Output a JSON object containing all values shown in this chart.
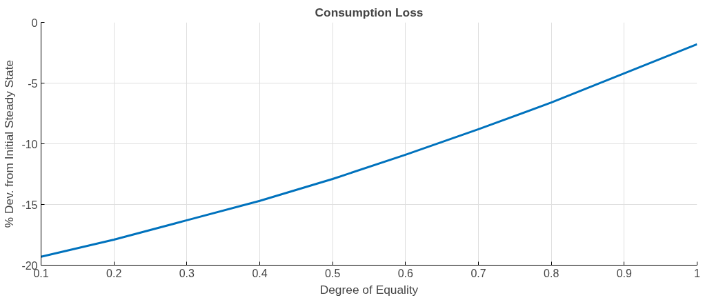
{
  "chart_data": {
    "type": "line",
    "title": "Consumption Loss",
    "xlabel": "Degree of Equality",
    "ylabel": "% Dev. from Initial Steady State",
    "x": [
      0.1,
      0.2,
      0.3,
      0.4,
      0.5,
      0.6,
      0.7,
      0.8,
      0.9,
      1.0
    ],
    "series": [
      {
        "color": "#0072bd",
        "values": [
          -19.3,
          -17.9,
          -16.3,
          -14.7,
          -12.9,
          -10.9,
          -8.8,
          -6.6,
          -4.2,
          -1.8
        ]
      }
    ],
    "xlim": [
      0.1,
      1
    ],
    "ylim": [
      -20,
      0
    ],
    "xticks": [
      0.1,
      0.2,
      0.3,
      0.4,
      0.5,
      0.6,
      0.7,
      0.8,
      0.9,
      1
    ],
    "yticks": [
      -20,
      -15,
      -10,
      -5,
      0
    ],
    "grid": true,
    "marker": "none",
    "line_style": "solid"
  }
}
